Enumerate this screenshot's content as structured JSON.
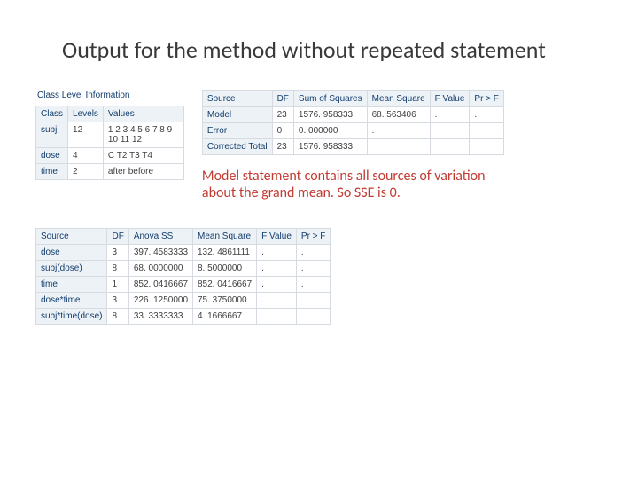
{
  "title": "Output for the method without repeated statement",
  "classLevel": {
    "caption": "Class Level Information",
    "headers": [
      "Class",
      "Levels",
      "Values"
    ],
    "rows": [
      [
        "subj",
        "12",
        "1 2 3 4 5 6 7 8 9 10 11 12"
      ],
      [
        "dose",
        "4",
        "C T2 T3 T4"
      ],
      [
        "time",
        "2",
        "after before"
      ]
    ]
  },
  "anova1": {
    "headers": [
      "Source",
      "DF",
      "Sum of Squares",
      "Mean Square",
      "F Value",
      "Pr > F"
    ],
    "rows": [
      [
        "Model",
        "23",
        "1576. 958333",
        "68. 563406",
        ".",
        "."
      ],
      [
        "Error",
        "0",
        "0. 000000",
        ".",
        "",
        ""
      ],
      [
        "Corrected Total",
        "23",
        "1576. 958333",
        "",
        "",
        ""
      ]
    ]
  },
  "note": "Model statement contains all sources of variation about the grand mean.  So SSE is 0.",
  "anova2": {
    "headers": [
      "Source",
      "DF",
      "Anova SS",
      "Mean Square",
      "F Value",
      "Pr > F"
    ],
    "rows": [
      [
        "dose",
        "3",
        "397. 4583333",
        "132. 4861111",
        ".",
        "."
      ],
      [
        "subj(dose)",
        "8",
        "68. 0000000",
        "8. 5000000",
        ".",
        "."
      ],
      [
        "time",
        "1",
        "852. 0416667",
        "852. 0416667",
        ".",
        "."
      ],
      [
        "dose*time",
        "3",
        "226. 1250000",
        "75. 3750000",
        ".",
        "."
      ],
      [
        "subj*time(dose)",
        "8",
        "33. 3333333",
        "4. 1666667",
        "",
        ""
      ]
    ]
  }
}
